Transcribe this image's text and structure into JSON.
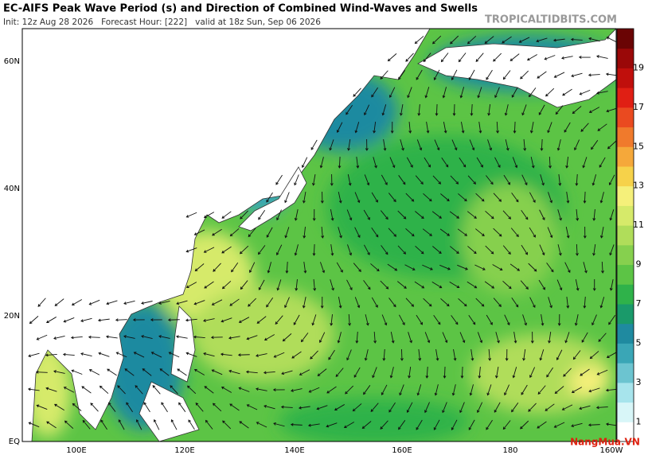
{
  "header": {
    "title": "EC-AIFS Peak Wave Period (s) and Direction of Combined Wind-Waves and Swells",
    "subtitle": "Init: 12z Aug 28 2026   Forecast Hour: [222]   valid at 18z Sun, Sep 06 2026",
    "site": "TROPICALTIDBITS.COM"
  },
  "map": {
    "lat_labels": [
      "60N",
      "40N",
      "20N",
      "EQ"
    ],
    "lon_labels": [
      "100E",
      "120E",
      "140E",
      "160E",
      "180",
      "160W"
    ]
  },
  "colorbar": {
    "labels": [
      1,
      3,
      5,
      7,
      9,
      11,
      13,
      15,
      17,
      19
    ],
    "colors": [
      "#ffffff",
      "#d8f6f8",
      "#a7e4ec",
      "#6cc4d0",
      "#3aa6b6",
      "#1f8aa0",
      "#1a9a6a",
      "#2fb24a",
      "#5cc445",
      "#86d04e",
      "#b0dd5a",
      "#d6ea6a",
      "#f5f07a",
      "#f6d24a",
      "#f5a83a",
      "#f07a2c",
      "#ea4a20",
      "#e01f14",
      "#c00f0c",
      "#9a0808",
      "#6a0404"
    ]
  },
  "watermark": "NangMua.VN"
}
